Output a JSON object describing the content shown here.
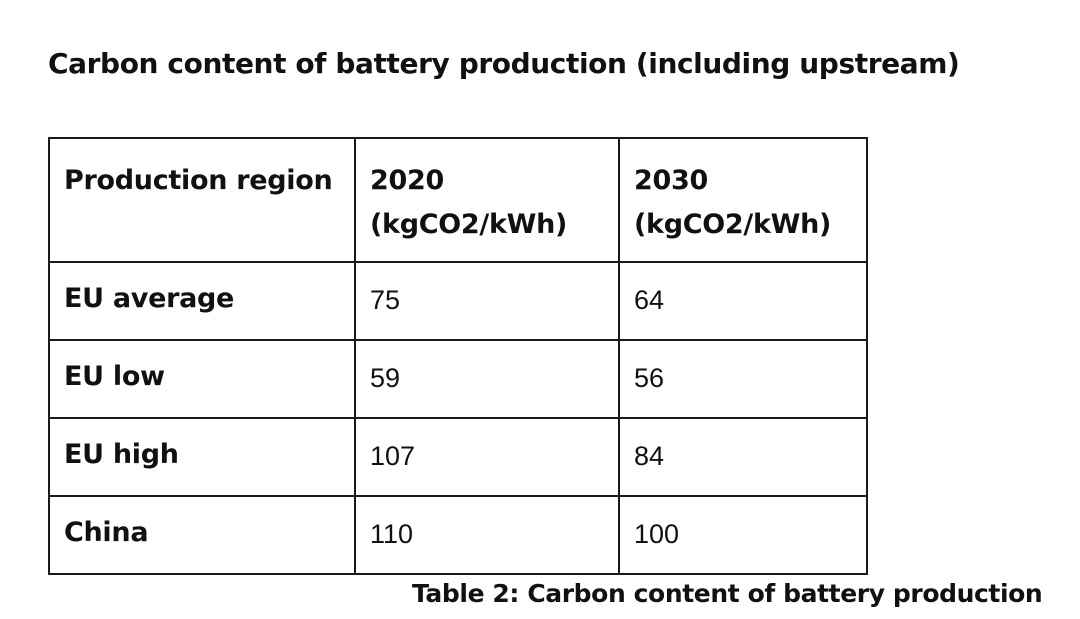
{
  "title": "Carbon content of battery production (including upstream)",
  "table": {
    "headers": [
      {
        "line1": "Production region",
        "line2": ""
      },
      {
        "line1": "2020",
        "line2": "(kgCO2/kWh)"
      },
      {
        "line1": "2030",
        "line2": "(kgCO2/kWh)"
      }
    ],
    "rows": [
      {
        "region": "EU average",
        "y2020": "75",
        "y2030": "64"
      },
      {
        "region": "EU low",
        "y2020": "59",
        "y2030": "56"
      },
      {
        "region": "EU high",
        "y2020": "107",
        "y2030": "84"
      },
      {
        "region": "China",
        "y2020": "110",
        "y2030": "100"
      }
    ]
  },
  "caption": "Table 2: Carbon content of battery production"
}
